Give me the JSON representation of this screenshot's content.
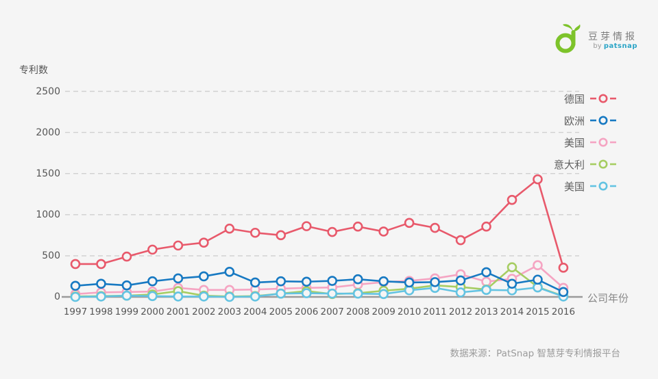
{
  "logo": {
    "brand": "豆芽情报",
    "by": "by",
    "name": "patsnap",
    "green": "#7dc32a",
    "teal": "#2aa4c6"
  },
  "footer": {
    "source": "数据来源：PatSnap 智慧芽专利情报平台"
  },
  "chart_data": {
    "type": "line",
    "ylabel": "专利数",
    "xlabel": "公司年份",
    "ylim": [
      0,
      2500
    ],
    "yticks": [
      0,
      500,
      1000,
      1500,
      2000,
      2500
    ],
    "grid": "horizontal-dashed",
    "legend_position": "right",
    "marker": "open-circle",
    "categories": [
      "1997",
      "1998",
      "1999",
      "2000",
      "2001",
      "2002",
      "2003",
      "2004",
      "2005",
      "2006",
      "2007",
      "2008",
      "2009",
      "2010",
      "2011",
      "2012",
      "2013",
      "2014",
      "2015",
      "2016"
    ],
    "series": [
      {
        "name": "德国",
        "color": "#e8596b",
        "values": [
          400,
          400,
          490,
          575,
          625,
          660,
          830,
          780,
          750,
          860,
          790,
          855,
          795,
          900,
          840,
          690,
          855,
          1180,
          1430,
          355
        ]
      },
      {
        "name": "欧洲",
        "color": "#1779c2",
        "values": [
          135,
          160,
          140,
          190,
          225,
          250,
          305,
          175,
          190,
          185,
          195,
          215,
          190,
          175,
          180,
          200,
          300,
          160,
          210,
          60
        ]
      },
      {
        "name": "美国",
        "color": "#f5a4c2",
        "values": [
          35,
          55,
          60,
          65,
          110,
          85,
          85,
          90,
          100,
          110,
          115,
          150,
          180,
          195,
          225,
          275,
          185,
          220,
          385,
          110
        ]
      },
      {
        "name": "意大利",
        "color": "#a6cd62",
        "values": [
          5,
          10,
          15,
          30,
          70,
          15,
          5,
          10,
          40,
          70,
          35,
          45,
          75,
          100,
          140,
          120,
          90,
          360,
          120,
          10
        ]
      },
      {
        "name": "美国",
        "color": "#63c3e2",
        "values": [
          0,
          5,
          15,
          10,
          5,
          5,
          0,
          5,
          40,
          45,
          40,
          40,
          35,
          80,
          110,
          55,
          85,
          80,
          115,
          5
        ]
      }
    ],
    "colors": {
      "background": "#f5f5f5",
      "grid": "#cfcfcf",
      "axis": "#9b9b9b",
      "marker_fill": "#f5f5f5"
    }
  }
}
